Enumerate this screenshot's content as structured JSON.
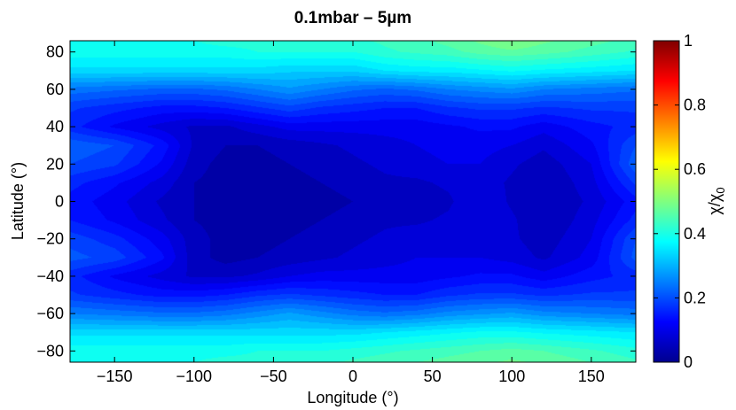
{
  "chart_data": {
    "type": "heatmap",
    "title": "0.1mbar – 5",
    "title_unit": "µm",
    "xlabel": "Longitude (°)",
    "ylabel": "Latitude (°)",
    "colorbar_label": "χ/χ",
    "colorbar_label_sub": "0",
    "xlim": [
      -178,
      178
    ],
    "ylim": [
      -86,
      86
    ],
    "clim": [
      0,
      1
    ],
    "colormap": "jet",
    "grid": false,
    "x_ticks": [
      -150,
      -100,
      -50,
      0,
      50,
      100,
      150
    ],
    "y_ticks": [
      80,
      60,
      40,
      20,
      0,
      -20,
      -40,
      -60,
      -80
    ],
    "c_ticks": [
      0,
      0.2,
      0.4,
      0.6,
      0.8,
      1
    ],
    "x_tick_labels": [
      "−150",
      "−100",
      "−50",
      "0",
      "50",
      "100",
      "150"
    ],
    "y_tick_labels": [
      "80",
      "60",
      "40",
      "20",
      "0",
      "−20",
      "−40",
      "−60",
      "−80"
    ],
    "c_tick_labels": [
      "0",
      "0.2",
      "0.4",
      "0.6",
      "0.8",
      "1"
    ],
    "lon_grid": [
      -178,
      -150,
      -120,
      -100,
      -80,
      -60,
      -40,
      -20,
      0,
      20,
      40,
      60,
      80,
      100,
      120,
      150,
      178
    ],
    "lat_grid": [
      86,
      80,
      70,
      60,
      50,
      40,
      30,
      20,
      10,
      0,
      -10,
      -20,
      -30,
      -40,
      -50,
      -60,
      -70,
      -80,
      -86
    ],
    "values": [
      [
        0.4,
        0.4,
        0.4,
        0.4,
        0.41,
        0.41,
        0.41,
        0.42,
        0.42,
        0.43,
        0.44,
        0.46,
        0.48,
        0.5,
        0.48,
        0.46,
        0.44
      ],
      [
        0.39,
        0.39,
        0.39,
        0.39,
        0.39,
        0.4,
        0.4,
        0.4,
        0.4,
        0.42,
        0.43,
        0.44,
        0.46,
        0.47,
        0.46,
        0.44,
        0.42
      ],
      [
        0.34,
        0.34,
        0.34,
        0.34,
        0.34,
        0.34,
        0.33,
        0.33,
        0.33,
        0.35,
        0.36,
        0.36,
        0.37,
        0.38,
        0.37,
        0.36,
        0.35
      ],
      [
        0.24,
        0.23,
        0.22,
        0.22,
        0.23,
        0.25,
        0.27,
        0.25,
        0.23,
        0.22,
        0.23,
        0.25,
        0.26,
        0.27,
        0.25,
        0.24,
        0.23
      ],
      [
        0.18,
        0.16,
        0.14,
        0.14,
        0.15,
        0.17,
        0.19,
        0.17,
        0.16,
        0.15,
        0.15,
        0.17,
        0.18,
        0.18,
        0.17,
        0.18,
        0.18
      ],
      [
        0.16,
        0.12,
        0.09,
        0.07,
        0.07,
        0.09,
        0.11,
        0.11,
        0.11,
        0.11,
        0.11,
        0.12,
        0.13,
        0.13,
        0.11,
        0.14,
        0.16
      ],
      [
        0.22,
        0.2,
        0.14,
        0.07,
        0.05,
        0.05,
        0.06,
        0.07,
        0.08,
        0.09,
        0.1,
        0.11,
        0.11,
        0.1,
        0.08,
        0.12,
        0.2
      ],
      [
        0.2,
        0.18,
        0.12,
        0.06,
        0.04,
        0.04,
        0.05,
        0.06,
        0.07,
        0.08,
        0.09,
        0.1,
        0.1,
        0.08,
        0.06,
        0.1,
        0.22
      ],
      [
        0.16,
        0.13,
        0.09,
        0.05,
        0.04,
        0.04,
        0.04,
        0.05,
        0.06,
        0.07,
        0.07,
        0.08,
        0.09,
        0.07,
        0.05,
        0.09,
        0.18
      ],
      [
        0.14,
        0.11,
        0.07,
        0.05,
        0.04,
        0.04,
        0.04,
        0.04,
        0.05,
        0.06,
        0.06,
        0.07,
        0.1,
        0.07,
        0.05,
        0.08,
        0.14
      ],
      [
        0.15,
        0.12,
        0.08,
        0.05,
        0.04,
        0.04,
        0.04,
        0.05,
        0.06,
        0.07,
        0.07,
        0.08,
        0.1,
        0.08,
        0.05,
        0.09,
        0.16
      ],
      [
        0.19,
        0.16,
        0.11,
        0.06,
        0.04,
        0.04,
        0.05,
        0.06,
        0.07,
        0.08,
        0.09,
        0.09,
        0.1,
        0.08,
        0.06,
        0.1,
        0.2
      ],
      [
        0.21,
        0.19,
        0.13,
        0.06,
        0.04,
        0.05,
        0.06,
        0.07,
        0.08,
        0.09,
        0.1,
        0.1,
        0.1,
        0.09,
        0.07,
        0.11,
        0.21
      ],
      [
        0.16,
        0.12,
        0.09,
        0.07,
        0.07,
        0.08,
        0.1,
        0.11,
        0.11,
        0.11,
        0.11,
        0.12,
        0.13,
        0.13,
        0.11,
        0.14,
        0.16
      ],
      [
        0.18,
        0.16,
        0.14,
        0.14,
        0.15,
        0.17,
        0.18,
        0.17,
        0.16,
        0.15,
        0.15,
        0.17,
        0.18,
        0.18,
        0.17,
        0.18,
        0.18
      ],
      [
        0.25,
        0.24,
        0.23,
        0.23,
        0.24,
        0.26,
        0.28,
        0.26,
        0.24,
        0.23,
        0.24,
        0.26,
        0.27,
        0.28,
        0.26,
        0.25,
        0.24
      ],
      [
        0.34,
        0.34,
        0.34,
        0.34,
        0.34,
        0.34,
        0.34,
        0.34,
        0.34,
        0.35,
        0.36,
        0.37,
        0.38,
        0.38,
        0.37,
        0.36,
        0.35
      ],
      [
        0.39,
        0.39,
        0.39,
        0.39,
        0.39,
        0.4,
        0.4,
        0.4,
        0.41,
        0.42,
        0.43,
        0.44,
        0.45,
        0.46,
        0.45,
        0.43,
        0.41
      ],
      [
        0.4,
        0.4,
        0.4,
        0.4,
        0.41,
        0.41,
        0.41,
        0.42,
        0.43,
        0.44,
        0.45,
        0.46,
        0.47,
        0.48,
        0.47,
        0.45,
        0.43
      ]
    ]
  }
}
